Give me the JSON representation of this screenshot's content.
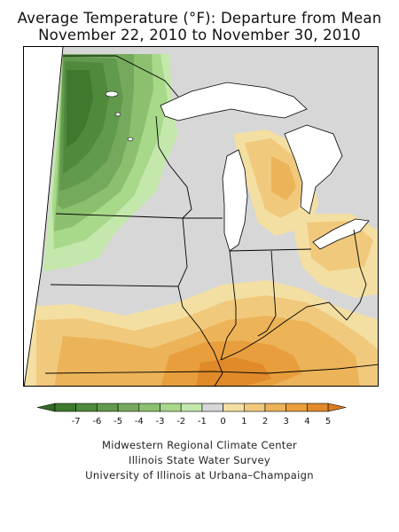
{
  "title_line1": "Average Temperature (°F): Departure from Mean",
  "title_line2": "November 22, 2010 to November 30, 2010",
  "legend": {
    "bins": [
      {
        "label": "-7",
        "color": "#3d7a2d"
      },
      {
        "label": "-6",
        "color": "#4f8a3c"
      },
      {
        "label": "-5",
        "color": "#61994d"
      },
      {
        "label": "-4",
        "color": "#75aa5d"
      },
      {
        "label": "-3",
        "color": "#8cc06f"
      },
      {
        "label": "-2",
        "color": "#a8d88a"
      },
      {
        "label": "-1",
        "color": "#c4e8ac"
      },
      {
        "label": "0",
        "color": "#d7d7d7"
      },
      {
        "label": "1",
        "color": "#f4dfa2"
      },
      {
        "label": "2",
        "color": "#f0c97c"
      },
      {
        "label": "3",
        "color": "#ecb358"
      },
      {
        "label": "4",
        "color": "#e89e3c"
      },
      {
        "label": "5",
        "color": "#e08a2a"
      }
    ],
    "under_color": "#2f6b22",
    "over_color": "#de7d1e"
  },
  "credits": {
    "line1": "Midwestern Regional Climate Center",
    "line2": "Illinois State Water Survey",
    "line3": "University of Illinois at Urbana–Champaign"
  },
  "map": {
    "region": "Midwest United States",
    "shading": "temperature departure from mean",
    "cold_anomaly_area": "Minnesota and western Wisconsin (greens)",
    "warm_anomaly_area": "Michigan, Ohio valley, southern Missouri/Illinois/Indiana/Kentucky (oranges)"
  }
}
